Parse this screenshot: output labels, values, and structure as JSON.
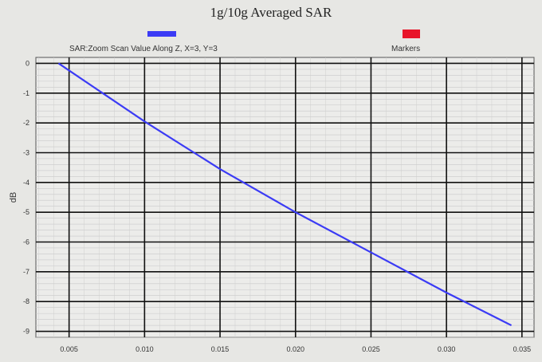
{
  "colors": {
    "line": "#3b3bf5",
    "marker": "#e8152a",
    "background": "#e7e7e4"
  },
  "chart_data": {
    "type": "line",
    "title": "1g/10g Averaged SAR",
    "xlabel": "",
    "ylabel": "dB",
    "xlim": [
      0.0028,
      0.0358
    ],
    "ylim": [
      -9.2,
      0.2
    ],
    "xticks": [
      "0.005",
      "0.010",
      "0.015",
      "0.020",
      "0.025",
      "0.030",
      "0.035"
    ],
    "yticks": [
      "0",
      "-1",
      "-2",
      "-3",
      "-4",
      "-5",
      "-6",
      "-7",
      "-8",
      "-9"
    ],
    "grid": true,
    "legend_position": "top",
    "series": [
      {
        "name": "SAR:Zoom Scan Value Along Z, X=3, Y=3",
        "x": [
          0.0043,
          0.01,
          0.015,
          0.02,
          0.025,
          0.03,
          0.0343
        ],
        "y": [
          0,
          -1.95,
          -3.55,
          -5.0,
          -6.35,
          -7.7,
          -8.8
        ]
      }
    ],
    "legend": [
      {
        "label": "SAR:Zoom Scan Value Along Z, X=3, Y=3",
        "color": "#3b3bf5"
      },
      {
        "label": "Markers",
        "color": "#e8152a"
      }
    ]
  }
}
